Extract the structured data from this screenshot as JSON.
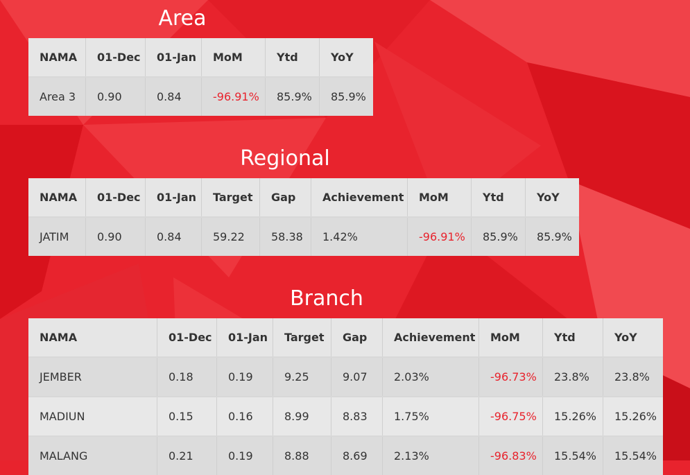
{
  "area": {
    "title": "Area",
    "headers": [
      "NAMA",
      "01-Dec",
      "01-Jan",
      "MoM",
      "Ytd",
      "YoY"
    ],
    "rows": [
      [
        "Area 3",
        "0.90",
        "0.84",
        "-96.91%",
        "85.9%",
        "85.9%"
      ]
    ]
  },
  "regional": {
    "title": "Regional",
    "headers": [
      "NAMA",
      "01-Dec",
      "01-Jan",
      "Target",
      "Gap",
      "Achievement",
      "MoM",
      "Ytd",
      "YoY"
    ],
    "rows": [
      [
        "JATIM",
        "0.90",
        "0.84",
        "59.22",
        "58.38",
        "1.42%",
        "-96.91%",
        "85.9%",
        "85.9%"
      ]
    ]
  },
  "branch": {
    "title": "Branch",
    "headers": [
      "NAMA",
      "01-Dec",
      "01-Jan",
      "Target",
      "Gap",
      "Achievement",
      "MoM",
      "Ytd",
      "YoY"
    ],
    "rows": [
      [
        "JEMBER",
        "0.18",
        "0.19",
        "9.25",
        "9.07",
        "2.03%",
        "-96.73%",
        "23.8%",
        "23.8%"
      ],
      [
        "MADIUN",
        "0.15",
        "0.16",
        "8.99",
        "8.83",
        "1.75%",
        "-96.75%",
        "15.26%",
        "15.26%"
      ],
      [
        "MALANG",
        "0.21",
        "0.19",
        "8.88",
        "8.69",
        "2.13%",
        "-96.83%",
        "15.54%",
        "15.54%"
      ]
    ]
  },
  "colors": {
    "background": "#e8232d",
    "negative_value": "#e8232d",
    "header_bg": "#e6e6e6"
  }
}
